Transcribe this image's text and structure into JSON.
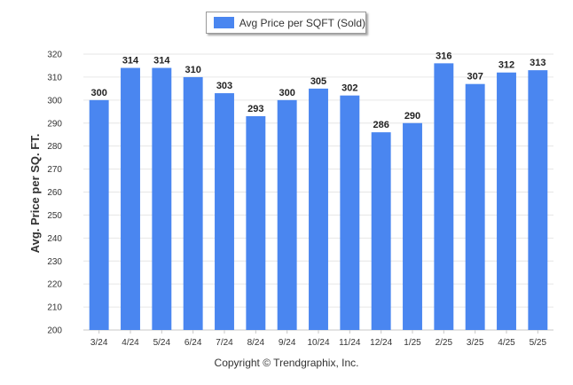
{
  "chart_data": {
    "type": "bar",
    "categories": [
      "3/24",
      "4/24",
      "5/24",
      "6/24",
      "7/24",
      "8/24",
      "9/24",
      "10/24",
      "11/24",
      "12/24",
      "1/25",
      "2/25",
      "3/25",
      "4/25",
      "5/25"
    ],
    "series": [
      {
        "name": "Avg Price per SQFT (Sold)",
        "values": [
          300,
          314,
          314,
          310,
          303,
          293,
          300,
          305,
          302,
          286,
          290,
          316,
          307,
          312,
          313
        ],
        "color": "#4a86f0"
      }
    ],
    "ylabel": "Avg. Price per SQ. FT.",
    "xlabel": "",
    "ylim": [
      200,
      320
    ],
    "yticks": [
      200,
      210,
      220,
      230,
      240,
      250,
      260,
      270,
      280,
      290,
      300,
      310,
      320
    ],
    "grid": true,
    "legend_position": "top-center",
    "data_labels": true
  },
  "footer": {
    "copyright": "Copyright © Trendgraphix, Inc."
  }
}
